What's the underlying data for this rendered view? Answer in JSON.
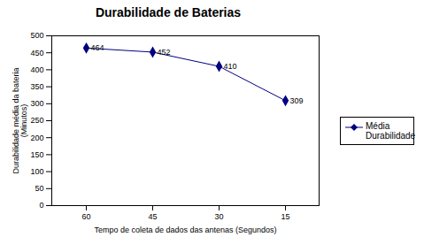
{
  "chart_data": {
    "type": "line",
    "title": "Durabilidade de Baterias",
    "x_label": "Tempo de coleta de dados das antenas (Segundos)",
    "y_label": "Durabilidade média da bateria (Minutos)",
    "categories": [
      "60",
      "45",
      "30",
      "15"
    ],
    "series": [
      {
        "name": "Média Durabilidade",
        "color": "#000080",
        "values": [
          464,
          452,
          410,
          309
        ],
        "marker": "diamond",
        "line_style": "solid"
      }
    ],
    "ylim": [
      0,
      500
    ],
    "yticks": [
      0,
      50,
      100,
      150,
      200,
      250,
      300,
      350,
      400,
      450,
      500
    ],
    "grid": false,
    "legend": "right",
    "data_labels": true
  }
}
